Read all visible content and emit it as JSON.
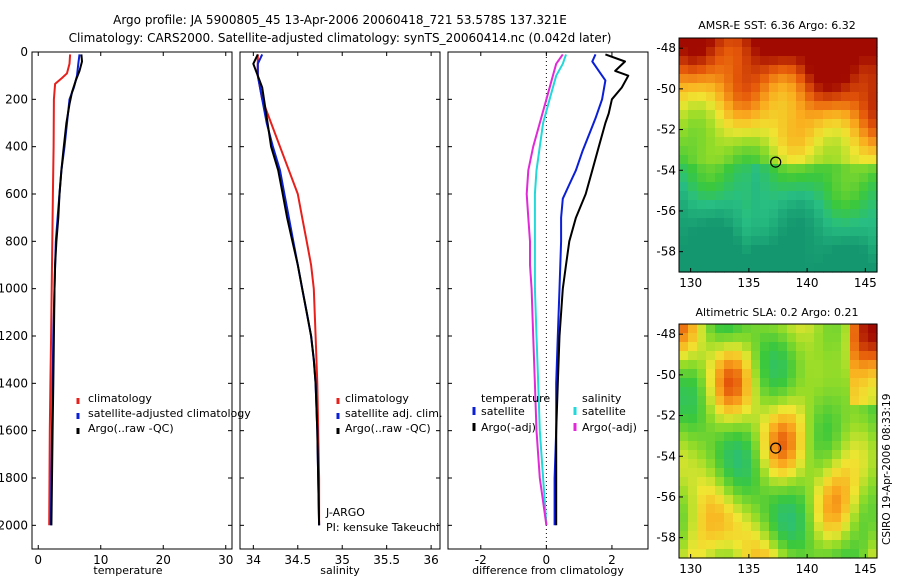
{
  "header": {
    "line1": "Argo profile: JA 5900805_45 13-Apr-2006 20060418_721 53.578S 137.321E",
    "line2": "Climatology: CARS2000. Satellite-adjusted climatology: synTS_20060414.nc (0.042d later)"
  },
  "side_stamp": "CSIRO 19-Apr-2006 08:33:19",
  "depth_axis": {
    "ylim": [
      0,
      2100
    ],
    "ticks": [
      0,
      200,
      400,
      600,
      800,
      1000,
      1200,
      1400,
      1600,
      1800,
      2000
    ],
    "tick_labels": [
      "0",
      "200",
      "400",
      "600",
      "800",
      "1000",
      "1200",
      "1400",
      "1600",
      "1800",
      "2000"
    ]
  },
  "chart_data": [
    {
      "type": "line",
      "panel": "temperature",
      "xlabel": "temperature",
      "xlim": [
        -1,
        31
      ],
      "xticks": [
        0,
        10,
        20,
        30
      ],
      "xtick_labels": [
        "0",
        "10",
        "20",
        "30"
      ],
      "legend": [
        "climatology",
        "satellite-adjusted climatology",
        "Argo(..raw -QC)"
      ],
      "series": [
        {
          "name": "climatology",
          "color": "#e8201c",
          "points": [
            [
              5.1,
              10
            ],
            [
              5.0,
              50
            ],
            [
              4.6,
              90
            ],
            [
              3.8,
              110
            ],
            [
              2.7,
              135
            ],
            [
              2.5,
              200
            ],
            [
              2.45,
              400
            ],
            [
              2.35,
              600
            ],
            [
              2.25,
              800
            ],
            [
              2.15,
              1000
            ],
            [
              2.05,
              1200
            ],
            [
              1.95,
              1400
            ],
            [
              1.85,
              1600
            ],
            [
              1.8,
              1800
            ],
            [
              1.75,
              2000
            ]
          ]
        },
        {
          "name": "satellite-adjusted climatology",
          "color": "#0a1fd6",
          "points": [
            [
              6.6,
              10
            ],
            [
              6.4,
              50
            ],
            [
              6.2,
              100
            ],
            [
              5.7,
              150
            ],
            [
              5.0,
              200
            ],
            [
              4.6,
              300
            ],
            [
              4.2,
              400
            ],
            [
              3.7,
              500
            ],
            [
              3.4,
              600
            ],
            [
              3.1,
              700
            ],
            [
              2.8,
              800
            ],
            [
              2.6,
              1000
            ],
            [
              2.4,
              1200
            ],
            [
              2.3,
              1400
            ],
            [
              2.2,
              1600
            ],
            [
              2.1,
              1800
            ],
            [
              2.0,
              2000
            ]
          ]
        },
        {
          "name": "Argo(..raw -QC)",
          "color": "#000000",
          "points": [
            [
              6.9,
              10
            ],
            [
              7.0,
              40
            ],
            [
              6.6,
              80
            ],
            [
              6.0,
              120
            ],
            [
              5.4,
              170
            ],
            [
              5.0,
              220
            ],
            [
              4.5,
              300
            ],
            [
              4.3,
              350
            ],
            [
              4.0,
              420
            ],
            [
              3.7,
              500
            ],
            [
              3.4,
              600
            ],
            [
              3.2,
              700
            ],
            [
              2.9,
              800
            ],
            [
              2.7,
              900
            ],
            [
              2.6,
              1000
            ],
            [
              2.5,
              1200
            ],
            [
              2.4,
              1400
            ],
            [
              2.3,
              1600
            ],
            [
              2.2,
              1800
            ],
            [
              2.1,
              2000
            ]
          ]
        }
      ]
    },
    {
      "type": "line",
      "panel": "salinity",
      "xlabel": "salinity",
      "xlim": [
        33.85,
        36.1
      ],
      "xticks": [
        34,
        34.5,
        35,
        35.5,
        36
      ],
      "xtick_labels": [
        "34",
        "34.5",
        "35",
        "35.5",
        "36"
      ],
      "legend": [
        "climatology",
        "satellite adj. clim.",
        "Argo(..raw -QC)"
      ],
      "annotation": [
        "J-ARGO",
        "PI: kensuke Takeuchi"
      ],
      "series": [
        {
          "name": "climatology",
          "color": "#e8201c",
          "points": [
            [
              34.05,
              10
            ],
            [
              34.05,
              100
            ],
            [
              34.1,
              200
            ],
            [
              34.2,
              300
            ],
            [
              34.3,
              400
            ],
            [
              34.4,
              500
            ],
            [
              34.5,
              600
            ],
            [
              34.55,
              700
            ],
            [
              34.6,
              800
            ],
            [
              34.65,
              900
            ],
            [
              34.68,
              1000
            ],
            [
              34.7,
              1200
            ],
            [
              34.72,
              1400
            ],
            [
              34.73,
              1600
            ],
            [
              34.74,
              1800
            ],
            [
              34.74,
              2000
            ]
          ]
        },
        {
          "name": "satellite adj. clim.",
          "color": "#0a1fd6",
          "points": [
            [
              34.1,
              10
            ],
            [
              34.05,
              50
            ],
            [
              34.05,
              100
            ],
            [
              34.1,
              200
            ],
            [
              34.15,
              300
            ],
            [
              34.22,
              400
            ],
            [
              34.3,
              500
            ],
            [
              34.35,
              600
            ],
            [
              34.4,
              700
            ],
            [
              34.45,
              800
            ],
            [
              34.5,
              900
            ],
            [
              34.55,
              1000
            ],
            [
              34.6,
              1100
            ],
            [
              34.65,
              1200
            ],
            [
              34.68,
              1300
            ],
            [
              34.7,
              1400
            ],
            [
              34.72,
              1600
            ],
            [
              34.73,
              1800
            ],
            [
              34.74,
              2000
            ]
          ]
        },
        {
          "name": "Argo(..raw -QC)",
          "color": "#000000",
          "points": [
            [
              34.05,
              10
            ],
            [
              34.0,
              50
            ],
            [
              34.05,
              100
            ],
            [
              34.1,
              150
            ],
            [
              34.12,
              200
            ],
            [
              34.16,
              300
            ],
            [
              34.2,
              400
            ],
            [
              34.28,
              500
            ],
            [
              34.33,
              600
            ],
            [
              34.38,
              700
            ],
            [
              34.44,
              800
            ],
            [
              34.5,
              900
            ],
            [
              34.55,
              1000
            ],
            [
              34.6,
              1100
            ],
            [
              34.65,
              1200
            ],
            [
              34.68,
              1300
            ],
            [
              34.7,
              1400
            ],
            [
              34.72,
              1600
            ],
            [
              34.73,
              1800
            ],
            [
              34.74,
              2000
            ]
          ]
        }
      ]
    },
    {
      "type": "line",
      "panel": "difference",
      "xlabel": "difference from climatology",
      "xlim": [
        -3.0,
        3.1
      ],
      "xticks": [
        -2,
        0,
        2
      ],
      "xtick_labels": [
        "-2",
        "0",
        "2"
      ],
      "legend": {
        "temperature_title": "temperature",
        "salinity_title": "salinity",
        "temperature": [
          "satellite",
          "Argo(-adj)"
        ],
        "salinity": [
          "satellite",
          "Argo(-adj)"
        ]
      },
      "series": [
        {
          "name": "temperature satellite",
          "color": "#0a1fd6",
          "points": [
            [
              1.5,
              10
            ],
            [
              1.4,
              40
            ],
            [
              1.6,
              80
            ],
            [
              1.8,
              120
            ],
            [
              1.7,
              200
            ],
            [
              1.5,
              280
            ],
            [
              1.3,
              350
            ],
            [
              1.1,
              420
            ],
            [
              0.9,
              500
            ],
            [
              0.7,
              560
            ],
            [
              0.5,
              620
            ],
            [
              0.45,
              700
            ],
            [
              0.45,
              800
            ],
            [
              0.4,
              1000
            ],
            [
              0.35,
              1200
            ],
            [
              0.3,
              1400
            ],
            [
              0.3,
              1600
            ],
            [
              0.25,
              1800
            ],
            [
              0.25,
              2000
            ]
          ]
        },
        {
          "name": "temperature Argo(-adj)",
          "color": "#000000",
          "points": [
            [
              1.8,
              10
            ],
            [
              2.4,
              40
            ],
            [
              2.1,
              80
            ],
            [
              2.5,
              100
            ],
            [
              2.3,
              150
            ],
            [
              2.0,
              200
            ],
            [
              1.9,
              260
            ],
            [
              1.8,
              300
            ],
            [
              1.6,
              400
            ],
            [
              1.4,
              500
            ],
            [
              1.2,
              600
            ],
            [
              0.9,
              700
            ],
            [
              0.7,
              800
            ],
            [
              0.6,
              900
            ],
            [
              0.5,
              1000
            ],
            [
              0.4,
              1200
            ],
            [
              0.35,
              1400
            ],
            [
              0.3,
              1600
            ],
            [
              0.3,
              1800
            ],
            [
              0.3,
              2000
            ]
          ]
        },
        {
          "name": "salinity satellite",
          "color": "#22d8d8",
          "points": [
            [
              0.6,
              10
            ],
            [
              0.5,
              50
            ],
            [
              0.3,
              100
            ],
            [
              0.1,
              200
            ],
            [
              -0.1,
              300
            ],
            [
              -0.2,
              400
            ],
            [
              -0.3,
              500
            ],
            [
              -0.35,
              600
            ],
            [
              -0.35,
              700
            ],
            [
              -0.35,
              800
            ],
            [
              -0.35,
              900
            ],
            [
              -0.35,
              1000
            ],
            [
              -0.3,
              1200
            ],
            [
              -0.25,
              1400
            ],
            [
              -0.2,
              1600
            ],
            [
              -0.1,
              1800
            ],
            [
              0.0,
              2000
            ]
          ]
        },
        {
          "name": "salinity Argo(-adj)",
          "color": "#e02ad8",
          "points": [
            [
              0.5,
              10
            ],
            [
              0.3,
              50
            ],
            [
              0.2,
              100
            ],
            [
              0.0,
              200
            ],
            [
              -0.2,
              300
            ],
            [
              -0.4,
              400
            ],
            [
              -0.55,
              500
            ],
            [
              -0.6,
              600
            ],
            [
              -0.55,
              700
            ],
            [
              -0.5,
              800
            ],
            [
              -0.5,
              900
            ],
            [
              -0.45,
              1000
            ],
            [
              -0.4,
              1200
            ],
            [
              -0.35,
              1400
            ],
            [
              -0.3,
              1600
            ],
            [
              -0.2,
              1800
            ],
            [
              0.0,
              2000
            ]
          ]
        }
      ]
    },
    {
      "type": "heatmap",
      "panel": "sst-map",
      "title": "AMSR-E SST: 6.36 Argo: 6.32",
      "xlim": [
        129,
        146
      ],
      "ylim": [
        -59,
        -47.5
      ],
      "xticks": [
        130,
        135,
        140,
        145
      ],
      "yticks": [
        -48,
        -50,
        -52,
        -54,
        -56,
        -58
      ],
      "marker": {
        "lon": 137.3,
        "lat": -53.6
      }
    },
    {
      "type": "heatmap",
      "panel": "sla-map",
      "title": "Altimetric SLA: 0.2 Argo: 0.21",
      "xlim": [
        129,
        146
      ],
      "ylim": [
        -59,
        -47.5
      ],
      "xticks": [
        130,
        135,
        140,
        145
      ],
      "yticks": [
        -48,
        -50,
        -52,
        -54,
        -56,
        -58
      ],
      "marker": {
        "lon": 137.3,
        "lat": -53.6
      }
    }
  ]
}
